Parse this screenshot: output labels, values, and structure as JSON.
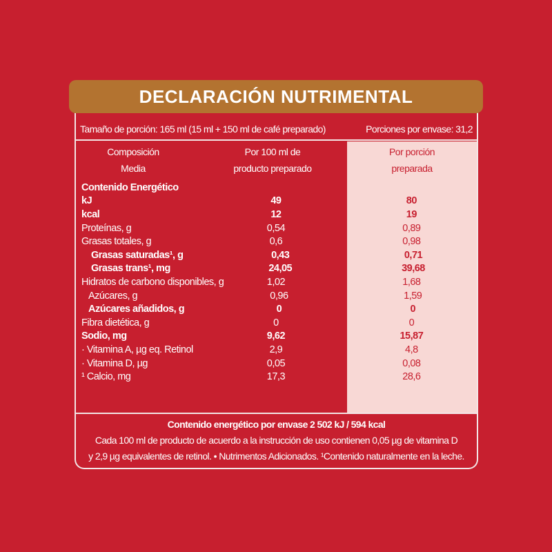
{
  "title": "DECLARACIÓN NUTRIMENTAL",
  "serving": {
    "size": "Tamaño de porción: 165 ml (15 ml + 150 ml de café preparado)",
    "per_pack": "Porciones por envase:  31,2"
  },
  "columns": {
    "c1a": "Composición",
    "c1b": "Media",
    "c2a": "Por 100 ml de",
    "c2b": "producto preparado",
    "c3a": "Por porción",
    "c3b": "preparada"
  },
  "rows": [
    {
      "label": "Contenido Energético",
      "a": "",
      "b": "",
      "style": "bold"
    },
    {
      "label": "kJ",
      "a": "49",
      "b": "80",
      "style": "bold"
    },
    {
      "label": "kcal",
      "a": "12",
      "b": "19",
      "style": "bold"
    },
    {
      "label": "Proteínas, g",
      "a": "0,54",
      "b": "0,89",
      "style": ""
    },
    {
      "label": "Grasas totales, g",
      "a": "0,6",
      "b": "0,98",
      "style": ""
    },
    {
      "label": "Grasas saturadas¹, g",
      "a": "0,43",
      "b": "0,71",
      "style": "bold ind"
    },
    {
      "label": "Grasas trans¹, mg",
      "a": "24,05",
      "b": "39,68",
      "style": "bold ind"
    },
    {
      "label": "Hidratos de carbono disponibles, g",
      "a": "1,02",
      "b": "1,68",
      "style": ""
    },
    {
      "label": "Azúcares, g",
      "a": "0,96",
      "b": "1,59",
      "style": "ind2"
    },
    {
      "label": "Azúcares añadidos, g",
      "a": "0",
      "b": "0",
      "style": "bold ind2"
    },
    {
      "label": "Fibra dietética, g",
      "a": "0",
      "b": "0",
      "style": ""
    },
    {
      "label": "Sodio, mg",
      "a": "9,62",
      "b": "15,87",
      "style": "bold"
    },
    {
      "label": "· Vitamina A, µg eq. Retinol",
      "a": "2,9",
      "b": "4,8",
      "style": ""
    },
    {
      "label": "· Vitamina D, µg",
      "a": "0,05",
      "b": "0,08",
      "style": ""
    },
    {
      "label": "¹ Calcio, mg",
      "a": "17,3",
      "b": "28,6",
      "style": ""
    }
  ],
  "footer": {
    "total": "Contenido energético por envase 2 502 kJ / 594 kcal",
    "line1": "Cada 100 ml de producto de acuerdo a la instrucción de uso contienen 0,05 µg de vitamina D",
    "line2": "y 2,9 µg equivalentes de retinol. • Nutrimentos Adicionados. ¹Contenido naturalmente en la leche."
  },
  "colors": {
    "background": "#c71f2f",
    "header": "#b37330",
    "highlight_column": "#f8d8d5"
  }
}
